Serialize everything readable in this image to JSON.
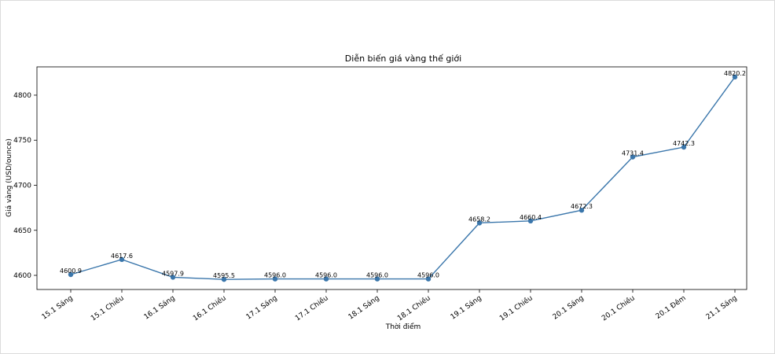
{
  "chart_data": {
    "type": "line",
    "title": "Diễn biến giá vàng thế giới",
    "xlabel": "Thời điểm",
    "ylabel": "Giá vàng (USD/ounce)",
    "categories": [
      "15.1 Sáng",
      "15.1 Chiều",
      "16.1 Sáng",
      "16.1 Chiều",
      "17.1 Sáng",
      "17.1 Chiều",
      "18.1 Sáng",
      "18.1 Chiều",
      "19.1 Sáng",
      "19.1 Chiều",
      "20.1 Sáng",
      "20.1 Chiều",
      "20.1 Đêm",
      "21.1 Sáng"
    ],
    "values": [
      4600.9,
      4617.6,
      4597.9,
      4595.5,
      4596.0,
      4596.0,
      4596.0,
      4596.0,
      4658.2,
      4660.4,
      4672.3,
      4731.4,
      4742.3,
      4820.2
    ],
    "data_labels": [
      "4600.9",
      "4617.6",
      "4597.9",
      "4595.5",
      "4596.0",
      "4596.0",
      "4596.0",
      "4596.0",
      "4658.2",
      "4660.4",
      "4672.3",
      "4731.4",
      "4742.3",
      "4820.2"
    ],
    "yticks": [
      4600,
      4650,
      4700,
      4750,
      4800
    ],
    "ylim": [
      4584.3,
      4831.4
    ],
    "grid": false,
    "color": "#3a76ab"
  }
}
